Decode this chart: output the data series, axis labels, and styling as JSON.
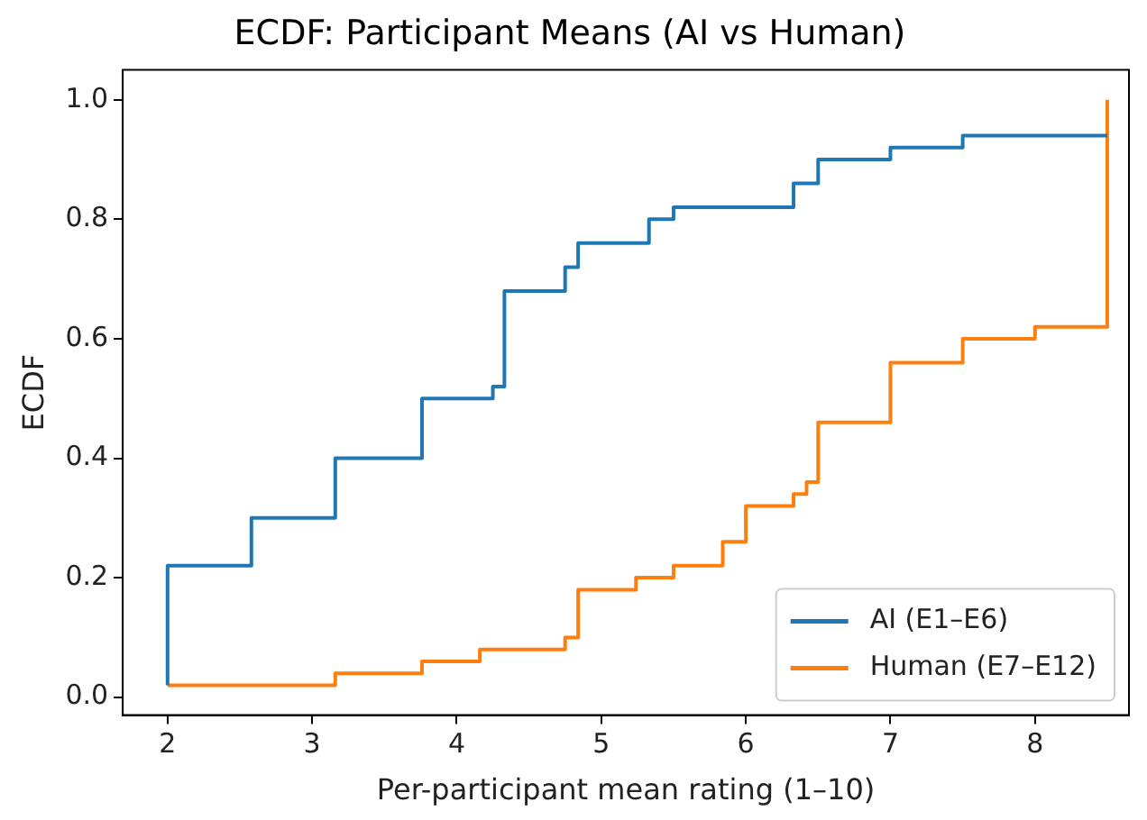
{
  "chart_data": {
    "type": "step",
    "title": "ECDF: Participant Means (AI vs Human)",
    "xlabel": "Per-participant mean rating (1–10)",
    "ylabel": "ECDF",
    "series": [
      {
        "name": "AI (E1–E6)",
        "color": "#1f77b4",
        "x": [
          2,
          2,
          2.58,
          3.16,
          3.76,
          4.25,
          4.33,
          4.75,
          4.84,
          5.33,
          5.5,
          6.33,
          6.5,
          7,
          7.5,
          8.5
        ],
        "values": [
          0.02,
          0.22,
          0.3,
          0.4,
          0.5,
          0.52,
          0.68,
          0.72,
          0.76,
          0.8,
          0.82,
          0.86,
          0.9,
          0.92,
          0.94,
          0.94
        ]
      },
      {
        "name": "Human (E7–E12)",
        "color": "#ff7f0e",
        "x": [
          2,
          3.16,
          3.76,
          4.16,
          4.75,
          4.84,
          5.24,
          5.5,
          5.84,
          6,
          6.33,
          6.42,
          6.5,
          7,
          7.5,
          8,
          8.5
        ],
        "values": [
          0.02,
          0.04,
          0.06,
          0.08,
          0.1,
          0.18,
          0.2,
          0.22,
          0.26,
          0.32,
          0.34,
          0.36,
          0.46,
          0.56,
          0.6,
          0.62,
          1.0
        ]
      }
    ],
    "xlim": [
      1.69,
      8.65
    ],
    "ylim": [
      -0.03,
      1.05
    ],
    "xticks": [
      2,
      3,
      4,
      5,
      6,
      7,
      8
    ],
    "yticks": [
      {
        "value": 0,
        "label": "0.0"
      },
      {
        "value": 0.2,
        "label": "0.2"
      },
      {
        "value": 0.4,
        "label": "0.4"
      },
      {
        "value": 0.6,
        "label": "0.6"
      },
      {
        "value": 0.8,
        "label": "0.8"
      },
      {
        "value": 1,
        "label": "1.0"
      }
    ],
    "grid": false,
    "legend": "bottom right",
    "marker": "none",
    "line_style": "solid"
  }
}
